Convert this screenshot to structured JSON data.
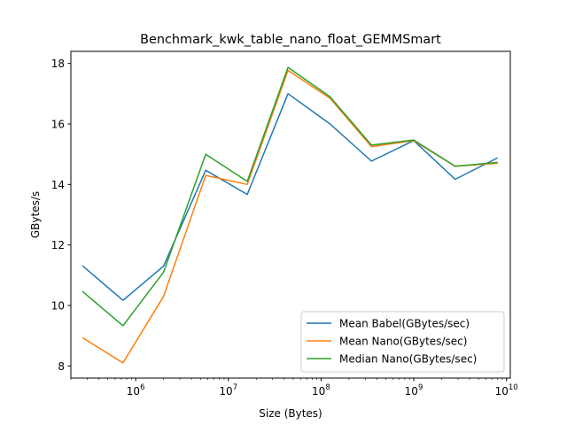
{
  "chart_data": {
    "type": "line",
    "title": "Benchmark_kwk_table_nano_float_GEMMSmart",
    "xlabel": "Size (Bytes)",
    "ylabel": "GBytes/s",
    "xscale": "log",
    "grid": false,
    "legend_position": "lower-right",
    "xlim": [
      200000,
      11000000000
    ],
    "ylim": [
      7.6,
      18.4
    ],
    "xticks": [
      {
        "value": 1000000,
        "base": "10",
        "exp": "6"
      },
      {
        "value": 10000000,
        "base": "10",
        "exp": "7"
      },
      {
        "value": 100000000,
        "base": "10",
        "exp": "8"
      },
      {
        "value": 1000000000,
        "base": "10",
        "exp": "9"
      },
      {
        "value": 10000000000,
        "base": "10",
        "exp": "10"
      }
    ],
    "yticks": [
      8,
      10,
      12,
      14,
      16,
      18
    ],
    "x": [
      270000,
      730000,
      2000000,
      5700000,
      16000000,
      44000000,
      125000000,
      350000000,
      1000000000,
      2800000000,
      7900000000
    ],
    "series": [
      {
        "name": "Mean Babel(GBytes/sec)",
        "color": "#1f77b4",
        "values": [
          11.3,
          10.17,
          11.3,
          14.47,
          13.67,
          17.0,
          16.0,
          14.77,
          15.45,
          14.17,
          14.87
        ]
      },
      {
        "name": "Mean Nano(GBytes/sec)",
        "color": "#ff7f0e",
        "values": [
          8.93,
          8.1,
          10.3,
          14.3,
          14.0,
          17.77,
          16.85,
          15.25,
          15.45,
          14.6,
          14.7
        ]
      },
      {
        "name": "Median Nano(GBytes/sec)",
        "color": "#2ca02c",
        "values": [
          10.45,
          9.33,
          11.1,
          15.0,
          14.1,
          17.87,
          16.9,
          15.3,
          15.47,
          14.6,
          14.73
        ]
      }
    ]
  }
}
